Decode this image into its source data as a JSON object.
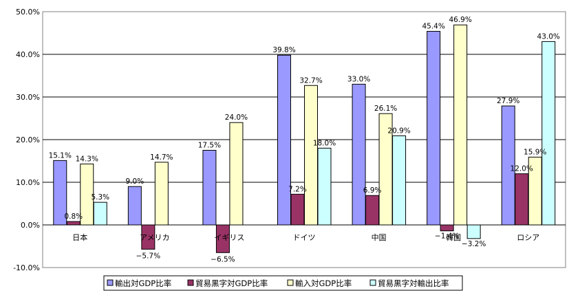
{
  "chart_data": {
    "type": "bar",
    "categories": [
      "日本",
      "アメリカ",
      "イギリス",
      "ドイツ",
      "中国",
      "韓国",
      "ロシア"
    ],
    "series": [
      {
        "name": "輸出対GDP比率",
        "color": "#9999FF",
        "values": [
          15.1,
          9.0,
          17.5,
          39.8,
          33.0,
          45.4,
          27.9
        ],
        "labels": [
          "15.1%",
          "9.0%",
          "17.5%",
          "39.8%",
          "33.0%",
          "45.4%",
          "27.9%"
        ]
      },
      {
        "name": "貿易黒字対GDP比率",
        "color": "#993366",
        "values": [
          0.8,
          -5.7,
          -6.5,
          7.2,
          6.9,
          -1.4,
          12.0
        ],
        "labels": [
          "0.8%",
          "−5.7%",
          "−6.5%",
          "7.2%",
          "6.9%",
          "−1.4%",
          "12.0%"
        ]
      },
      {
        "name": "輸入対GDP比率",
        "color": "#FFFFCC",
        "values": [
          14.3,
          14.7,
          24.0,
          32.7,
          26.1,
          46.9,
          15.9
        ],
        "labels": [
          "14.3%",
          "14.7%",
          "24.0%",
          "32.7%",
          "26.1%",
          "46.9%",
          "15.9%"
        ]
      },
      {
        "name": "貿易黒字対輸出比率",
        "color": "#CCFFFF",
        "values": [
          5.3,
          null,
          null,
          18.0,
          20.9,
          -3.2,
          43.0
        ],
        "labels": [
          "5.3%",
          null,
          null,
          "18.0%",
          "20.9%",
          "−3.2%",
          "43.0%"
        ]
      }
    ],
    "yticks": [
      "50.0%",
      "40.0%",
      "30.0%",
      "20.0%",
      "10.0%",
      "0.0%",
      "-10.0%"
    ],
    "ylim": [
      -10,
      50
    ],
    "grid": true,
    "legend_position": "bottom"
  }
}
